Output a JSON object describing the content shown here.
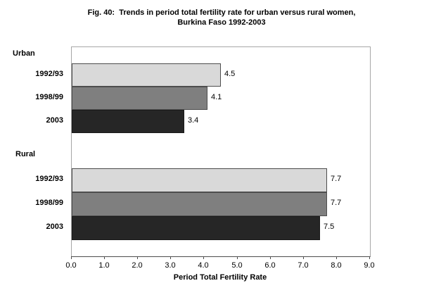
{
  "figure": {
    "title_line1": "Fig. 40:  Trends in period total fertility rate for urban versus rural women,",
    "title_line2": "Burkina Faso 1992-2003"
  },
  "chart_data": {
    "type": "bar",
    "orientation": "horizontal",
    "title": "Fig. 40: Trends in period total fertility rate for urban versus rural women, Burkina Faso 1992-2003",
    "xlabel": "Period Total Fertility Rate",
    "xlim": [
      0.0,
      9.0
    ],
    "xtick_labels": [
      "0.0",
      "1.0",
      "2.0",
      "3.0",
      "4.0",
      "5.0",
      "6.0",
      "7.0",
      "8.0",
      "9.0"
    ],
    "grid": false,
    "legend": "none",
    "plot_background": "#ffffff",
    "bar_colors": {
      "1992/93": "#d9d9d9",
      "1998/99": "#7f7f7f",
      "2003": "#262626"
    },
    "groups": [
      {
        "label": "Urban",
        "categories": [
          "1992/93",
          "1998/99",
          "2003"
        ],
        "values": [
          4.5,
          4.1,
          3.4
        ],
        "data_labels": [
          "4.5",
          "4.1",
          "3.4"
        ]
      },
      {
        "label": "Rural",
        "categories": [
          "1992/93",
          "1998/99",
          "2003"
        ],
        "values": [
          7.7,
          7.7,
          7.5
        ],
        "data_labels": [
          "7.7",
          "7.7",
          "7.5"
        ]
      }
    ]
  }
}
